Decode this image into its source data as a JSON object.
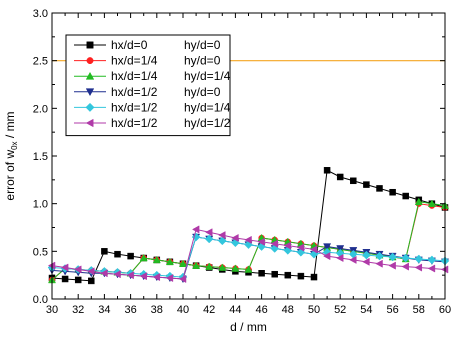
{
  "chart_data": {
    "type": "line",
    "title": "",
    "xlabel": "d / mm",
    "ylabel": "error of w",
    "ylabel_sub": "0x",
    "ylabel_suffix": " / mm",
    "xlim": [
      30,
      60
    ],
    "ylim": [
      0.0,
      3.0
    ],
    "x_ticks": [
      30,
      32,
      34,
      36,
      38,
      40,
      42,
      44,
      46,
      48,
      50,
      52,
      54,
      56,
      58,
      60
    ],
    "y_ticks": [
      "0.0",
      "0.5",
      "1.0",
      "1.5",
      "2.0",
      "2.5",
      "3.0"
    ],
    "y_tick_values": [
      0.0,
      0.5,
      1.0,
      1.5,
      2.0,
      2.5,
      3.0
    ],
    "grid": false,
    "legend_position": "top-left",
    "reference_line": {
      "y": 2.5,
      "color": "#f5a623"
    },
    "x": [
      30,
      31,
      32,
      33,
      34,
      35,
      36,
      37,
      38,
      39,
      40,
      41,
      42,
      43,
      44,
      45,
      46,
      47,
      48,
      49,
      50,
      51,
      52,
      53,
      54,
      55,
      56,
      57,
      58,
      59,
      60
    ],
    "series": [
      {
        "name": "hx/d=0",
        "name2": "hy/d=0",
        "color": "#000000",
        "marker": "square",
        "values": [
          0.22,
          0.21,
          0.2,
          0.19,
          0.5,
          0.47,
          0.45,
          0.43,
          0.41,
          0.39,
          0.37,
          0.35,
          0.33,
          0.31,
          0.29,
          0.28,
          0.27,
          0.26,
          0.25,
          0.24,
          0.23,
          1.35,
          1.28,
          1.24,
          1.2,
          1.16,
          1.12,
          1.08,
          1.04,
          1.0,
          0.96
        ]
      },
      {
        "name": "hx/d=1/4",
        "name2": "hy/d=0",
        "color": "#ff2020",
        "marker": "circle",
        "values": [
          0.2,
          0.32,
          0.31,
          0.3,
          0.29,
          0.28,
          0.27,
          0.43,
          0.41,
          0.39,
          0.37,
          0.35,
          0.34,
          0.33,
          0.32,
          0.31,
          0.64,
          0.62,
          0.6,
          0.58,
          0.56,
          0.54,
          0.52,
          0.5,
          0.48,
          0.46,
          0.44,
          0.42,
          1.0,
          0.98,
          0.96
        ]
      },
      {
        "name": "hx/d=1/4",
        "name2": "hy/d=1/4",
        "color": "#22bb22",
        "marker": "triangle-up",
        "values": [
          0.2,
          0.32,
          0.31,
          0.3,
          0.29,
          0.28,
          0.27,
          0.43,
          0.41,
          0.39,
          0.37,
          0.35,
          0.34,
          0.33,
          0.32,
          0.31,
          0.64,
          0.62,
          0.6,
          0.58,
          0.56,
          0.54,
          0.52,
          0.5,
          0.48,
          0.46,
          0.44,
          0.42,
          1.02,
          1.0,
          0.98
        ]
      },
      {
        "name": "hx/d=1/2",
        "name2": "hy/d=0",
        "color": "#1f2f8f",
        "marker": "triangle-down",
        "values": [
          0.3,
          0.29,
          0.28,
          0.27,
          0.27,
          0.26,
          0.25,
          0.24,
          0.23,
          0.22,
          0.21,
          0.65,
          0.63,
          0.61,
          0.59,
          0.57,
          0.55,
          0.53,
          0.51,
          0.49,
          0.47,
          0.55,
          0.53,
          0.51,
          0.49,
          0.47,
          0.45,
          0.43,
          0.41,
          0.4,
          0.39
        ]
      },
      {
        "name": "hx/d=1/2",
        "name2": "hy/d=1/4",
        "color": "#33c6dd",
        "marker": "diamond",
        "values": [
          0.33,
          0.32,
          0.31,
          0.3,
          0.29,
          0.28,
          0.27,
          0.26,
          0.25,
          0.24,
          0.23,
          0.65,
          0.63,
          0.61,
          0.59,
          0.57,
          0.55,
          0.53,
          0.51,
          0.49,
          0.47,
          0.49,
          0.48,
          0.47,
          0.46,
          0.45,
          0.44,
          0.43,
          0.42,
          0.41,
          0.4
        ]
      },
      {
        "name": "hx/d=1/2",
        "name2": "hy/d=1/2",
        "color": "#b03aa8",
        "marker": "triangle-left",
        "values": [
          0.35,
          0.33,
          0.31,
          0.29,
          0.27,
          0.26,
          0.25,
          0.24,
          0.23,
          0.22,
          0.21,
          0.73,
          0.7,
          0.67,
          0.64,
          0.62,
          0.6,
          0.58,
          0.56,
          0.54,
          0.52,
          0.45,
          0.43,
          0.41,
          0.39,
          0.37,
          0.35,
          0.34,
          0.33,
          0.32,
          0.31
        ]
      }
    ]
  }
}
